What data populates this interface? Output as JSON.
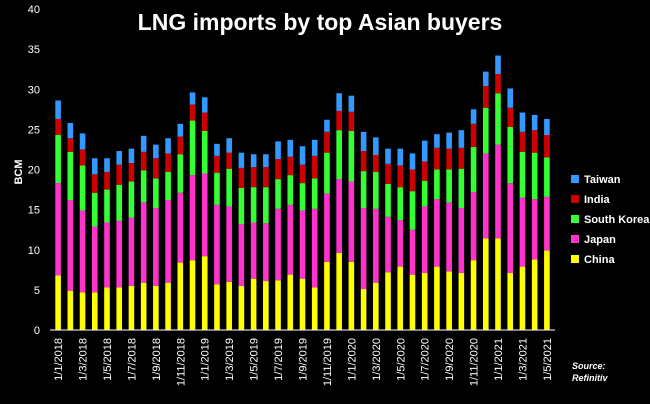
{
  "chart_data": {
    "type": "bar",
    "stacked": true,
    "title": "LNG imports by top Asian buyers",
    "ylabel": "BCM",
    "ylim": [
      0,
      40
    ],
    "yticks": [
      0,
      5,
      10,
      15,
      20,
      25,
      30,
      35,
      40
    ],
    "source_label": "Source:",
    "source_name": "Refinitiv",
    "categories": [
      "1/1/2018",
      "1/2/2018",
      "1/3/2018",
      "1/4/2018",
      "1/5/2018",
      "1/6/2018",
      "1/7/2018",
      "1/8/2018",
      "1/9/2018",
      "1/10/2018",
      "1/11/2018",
      "1/12/2018",
      "1/1/2019",
      "1/2/2019",
      "1/3/2019",
      "1/4/2019",
      "1/5/2019",
      "1/6/2019",
      "1/7/2019",
      "1/8/2019",
      "1/9/2019",
      "1/10/2019",
      "1/11/2019",
      "1/12/2019",
      "1/1/2020",
      "1/2/2020",
      "1/3/2020",
      "1/4/2020",
      "1/5/2020",
      "1/6/2020",
      "1/7/2020",
      "1/8/2020",
      "1/9/2020",
      "1/10/2020",
      "1/11/2020",
      "1/12/2020",
      "1/1/2021",
      "1/2/2021",
      "1/3/2021",
      "1/4/2021",
      "1/5/2021"
    ],
    "xticklabels": [
      "1/1/2018",
      "",
      "1/3/2018",
      "",
      "1/5/2018",
      "",
      "1/7/2018",
      "",
      "1/9/2018",
      "",
      "1/11/2018",
      "",
      "1/1/2019",
      "",
      "1/3/2019",
      "",
      "1/5/2019",
      "",
      "1/7/2019",
      "",
      "1/9/2019",
      "",
      "1/11/2019",
      "",
      "1/1/2020",
      "",
      "1/3/2020",
      "",
      "1/5/2020",
      "",
      "1/7/2020",
      "",
      "1/9/2020",
      "",
      "1/11/2020",
      "",
      "1/1/2021",
      "",
      "1/3/2021",
      "",
      "1/5/2021"
    ],
    "series": [
      {
        "name": "China",
        "color": "#ffff00",
        "values": [
          6.8,
          4.9,
          4.7,
          4.7,
          5.3,
          5.3,
          5.5,
          5.9,
          5.5,
          5.9,
          8.4,
          8.7,
          9.2,
          5.7,
          6.0,
          5.5,
          6.4,
          6.1,
          6.2,
          6.9,
          6.4,
          5.3,
          8.5,
          9.6,
          8.5,
          5.1,
          5.9,
          7.2,
          7.9,
          6.9,
          7.1,
          7.9,
          7.3,
          7.1,
          8.7,
          11.4,
          11.4,
          7.1,
          7.9,
          8.8,
          9.9
        ]
      },
      {
        "name": "Japan",
        "color": "#ff33cc",
        "values": [
          11.5,
          11.3,
          10.2,
          8.2,
          8.1,
          8.3,
          8.5,
          10.0,
          9.7,
          10.3,
          8.7,
          10.6,
          10.3,
          9.9,
          9.4,
          7.7,
          7.0,
          7.2,
          8.9,
          8.7,
          8.5,
          9.8,
          8.5,
          9.2,
          10.0,
          10.1,
          9.2,
          6.9,
          5.8,
          5.6,
          8.3,
          8.4,
          8.6,
          8.1,
          8.5,
          10.6,
          11.7,
          11.2,
          8.6,
          7.5,
          6.7
        ]
      },
      {
        "name": "South Korea",
        "color": "#33ff33",
        "values": [
          6.0,
          6.0,
          5.6,
          4.2,
          4.1,
          4.5,
          4.5,
          4.0,
          3.7,
          3.5,
          4.8,
          6.8,
          5.3,
          4.0,
          4.7,
          4.5,
          4.4,
          4.5,
          3.7,
          3.7,
          3.4,
          3.8,
          5.1,
          6.1,
          6.3,
          4.6,
          4.6,
          4.1,
          4.1,
          4.8,
          3.2,
          3.7,
          4.1,
          4.9,
          5.6,
          5.7,
          6.4,
          7.0,
          5.7,
          5.8,
          4.9
        ]
      },
      {
        "name": "India",
        "color": "#cc0000",
        "values": [
          2.0,
          1.7,
          2.0,
          2.3,
          2.2,
          2.5,
          2.3,
          2.3,
          2.5,
          2.3,
          2.2,
          2.0,
          2.3,
          2.1,
          2.0,
          2.5,
          2.5,
          2.5,
          2.5,
          2.3,
          2.3,
          2.8,
          2.6,
          2.4,
          2.4,
          2.5,
          2.1,
          2.5,
          2.7,
          2.7,
          2.4,
          2.7,
          2.6,
          2.6,
          2.9,
          2.7,
          2.4,
          2.4,
          2.5,
          2.8,
          2.8
        ]
      },
      {
        "name": "Taiwan",
        "color": "#3399ff",
        "values": [
          2.3,
          1.9,
          2.0,
          2.0,
          1.7,
          1.7,
          1.8,
          2.0,
          1.7,
          1.9,
          1.6,
          1.5,
          1.9,
          1.5,
          1.8,
          1.9,
          1.6,
          1.6,
          2.2,
          2.1,
          2.3,
          2.0,
          1.5,
          2.2,
          2.0,
          2.4,
          2.2,
          1.9,
          2.1,
          2.0,
          2.6,
          1.7,
          2.0,
          2.2,
          1.8,
          1.8,
          2.3,
          2.4,
          2.4,
          1.9,
          2.0
        ]
      }
    ],
    "legend_order": [
      "Taiwan",
      "India",
      "South Korea",
      "Japan",
      "China"
    ],
    "legend_position": "right",
    "grid": false
  }
}
